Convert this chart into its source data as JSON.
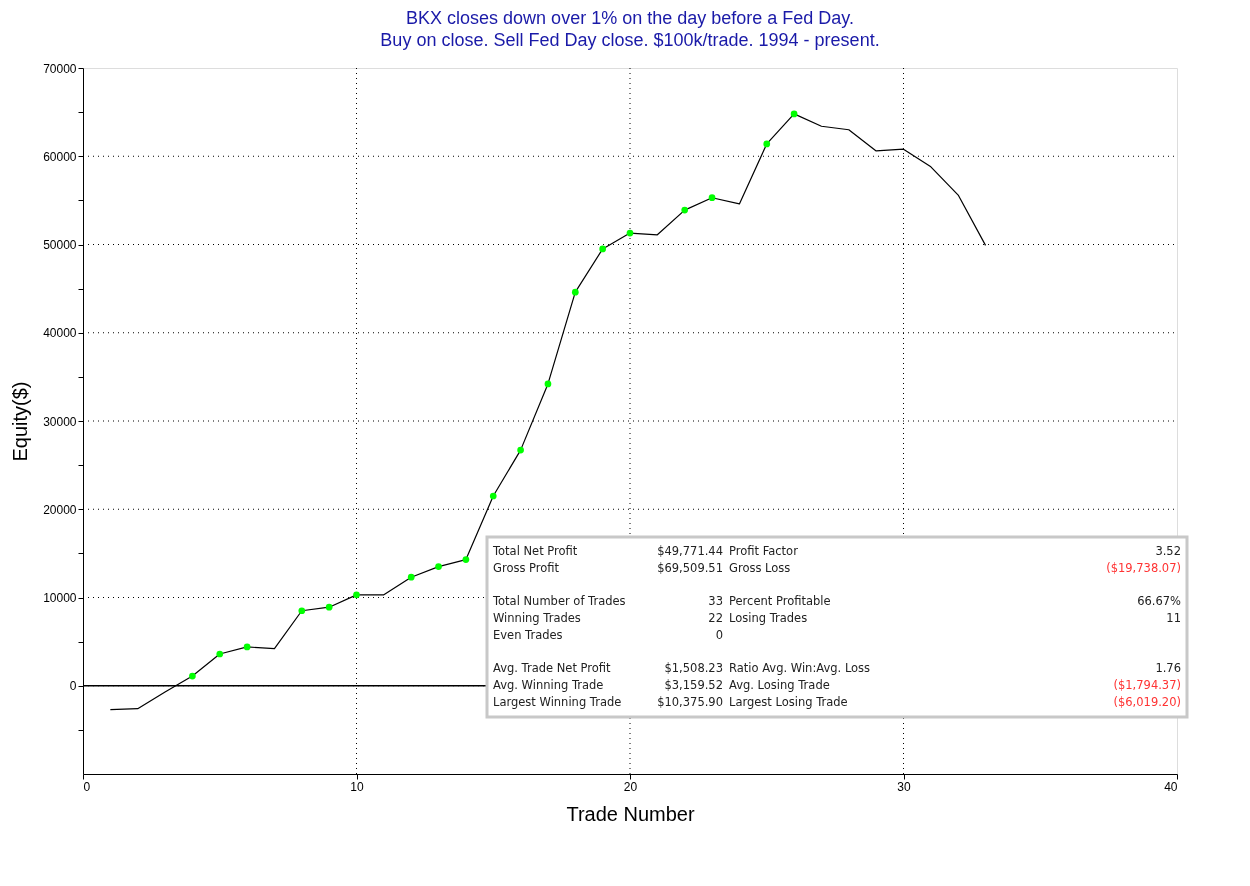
{
  "chart_data": {
    "type": "line",
    "title": "BKX closes down over 1% on the day before a Fed Day.",
    "subtitle": "Buy on close. Sell Fed Day close. $100k/trade. 1994 - present.",
    "xlabel": "Trade Number",
    "ylabel": "Equity($)",
    "series": [
      {
        "color": "#000000",
        "marker": "none",
        "line_style": "solid",
        "x": [
          1,
          2,
          3,
          4,
          5,
          6,
          7,
          8,
          9,
          10,
          11,
          12,
          13,
          14,
          15,
          16,
          17,
          18,
          19,
          20,
          21,
          22,
          23,
          24,
          25,
          26,
          27,
          28,
          29,
          30,
          31,
          32,
          33
        ],
        "values": [
          -2700,
          -2600,
          -700,
          1100,
          3600,
          4400,
          4200,
          8500,
          8900,
          10300,
          10300,
          12300,
          13500,
          14300,
          21500,
          26700,
          34200,
          44600,
          49500,
          51300,
          51100,
          53900,
          55300,
          54600,
          61400,
          64800,
          63400,
          63000,
          60600,
          60800,
          58800,
          55600,
          49900
        ]
      },
      {
        "type": "scatter",
        "color": "#00ff00",
        "marker": "circle",
        "x": [
          4,
          5,
          6,
          8,
          9,
          10,
          12,
          13,
          14,
          15,
          16,
          17,
          18,
          19,
          20,
          22,
          23,
          25,
          26
        ],
        "values": [
          1100,
          3600,
          4400,
          8500,
          8900,
          10300,
          12300,
          13500,
          14300,
          21500,
          26700,
          34200,
          44600,
          49500,
          51300,
          53900,
          55300,
          61400,
          64800
        ]
      }
    ],
    "xlim": [
      0,
      40
    ],
    "xticks": [
      0,
      10,
      20,
      30,
      40
    ],
    "ylim": [
      -10000,
      70000
    ],
    "yticks": [
      {
        "value": -5000,
        "label": null
      },
      0,
      {
        "value": 5000,
        "label": null
      },
      10000,
      {
        "value": 15000,
        "label": null
      },
      20000,
      {
        "value": 25000,
        "label": null
      },
      30000,
      {
        "value": 35000,
        "label": null
      },
      40000,
      {
        "value": 45000,
        "label": null
      },
      50000,
      {
        "value": 55000,
        "label": null
      },
      60000,
      {
        "value": 65000,
        "label": null
      },
      70000
    ],
    "grid": true,
    "ref_lines": [
      {
        "axis": "y",
        "value": 0,
        "color": "#000000",
        "line_style": "solid"
      }
    ],
    "annotations": [
      "Total Net Profit",
      "$49,771.44",
      "Profit Factor",
      "3.52",
      "Gross Profit",
      "$69,509.51",
      "Gross Loss",
      "($19,738.07)",
      "Total Number of Trades",
      "33",
      "Percent Profitable",
      "66.67%",
      "Winning Trades",
      "22",
      "Losing Trades",
      "11",
      "Even Trades",
      "0",
      "Avg. Trade Net Profit",
      "$1,508.23",
      "Ratio Avg. Win:Avg. Loss",
      "1.76",
      "Avg. Winning Trade",
      "$3,159.52",
      "Avg. Losing Trade",
      "($1,794.37)",
      "Largest Winning Trade",
      "$10,375.90",
      "Largest Losing Trade",
      "($6,019.20)"
    ]
  }
}
